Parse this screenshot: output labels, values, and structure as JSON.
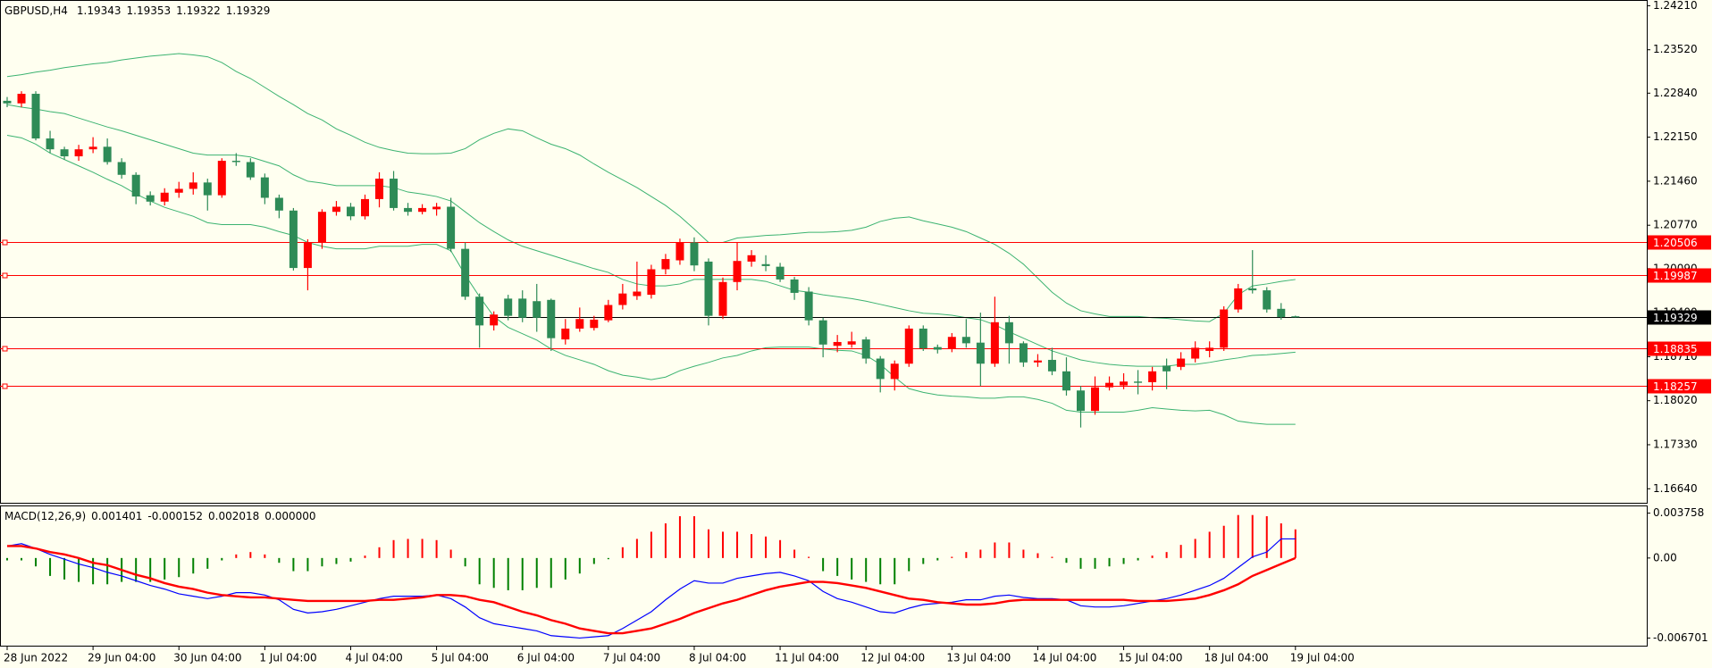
{
  "chart_data": [
    {
      "type": "candlestick",
      "title": "GBPUSD,H4",
      "categories": [
        "28 Jun 2022",
        null,
        null,
        null,
        null,
        null,
        "29 Jun 04:00",
        null,
        null,
        null,
        null,
        null,
        "30 Jun 04:00",
        null,
        null,
        null,
        null,
        null,
        "1 Jul 04:00",
        null,
        null,
        null,
        null,
        null,
        "4 Jul 04:00",
        null,
        null,
        null,
        null,
        null,
        "5 Jul 04:00",
        null,
        null,
        null,
        null,
        null,
        "6 Jul 04:00",
        null,
        null,
        null,
        null,
        null,
        "7 Jul 04:00",
        null,
        null,
        null,
        null,
        null,
        "8 Jul 04:00",
        null,
        null,
        null,
        null,
        null,
        "11 Jul 04:00",
        null,
        null,
        null,
        null,
        null,
        "12 Jul 04:00",
        null,
        null,
        null,
        null,
        null,
        "13 Jul 04:00",
        null,
        null,
        null,
        null,
        null,
        "14 Jul 04:00",
        null,
        null,
        null,
        null,
        null,
        "15 Jul 04:00",
        null,
        null,
        null,
        null,
        null,
        "18 Jul 04:00",
        null,
        null,
        null,
        null,
        null,
        "19 Jul 04:00"
      ],
      "open": [
        1.2272,
        1.2268,
        1.2283,
        1.2213,
        1.2196,
        1.2185,
        1.2196,
        1.22,
        1.2176,
        1.2156,
        1.2124,
        1.2114,
        1.2128,
        1.2134,
        1.2144,
        1.2124,
        1.2178,
        1.2176,
        1.2152,
        1.212,
        1.21,
        1.201,
        1.205,
        1.2098,
        1.2106,
        1.2091,
        1.2118,
        1.215,
        1.2104,
        1.2098,
        1.2102,
        1.2106,
        1.204,
        1.1965,
        1.192,
        1.1962,
        1.1962,
        1.1958,
        1.196,
        1.1898,
        1.1915,
        1.1916,
        1.1928,
        1.1952,
        1.1966,
        1.1968,
        1.2008,
        1.2022,
        1.205,
        1.202,
        1.1935,
        1.1988,
        1.202,
        1.2016,
        1.2012,
        1.1992,
        1.1973,
        1.1928,
        1.1888,
        1.189,
        1.1898,
        1.1868,
        1.1836,
        1.186,
        1.1915,
        1.1886,
        1.1884,
        1.1902,
        1.1893,
        1.186,
        1.1925,
        1.1892,
        1.1862,
        1.1866,
        1.1848,
        1.1818,
        1.1786,
        1.1823,
        1.1826,
        1.1832,
        1.1831,
        1.1857,
        1.1855,
        1.1868,
        1.188,
        1.1885,
        1.1945,
        1.1978,
        1.1975,
        1.1946,
        1.19343
      ],
      "high": [
        1.2278,
        1.2287,
        1.2287,
        1.2225,
        1.22,
        1.2203,
        1.2215,
        1.2213,
        1.2182,
        1.216,
        1.213,
        1.2135,
        1.2145,
        1.216,
        1.215,
        1.2182,
        1.219,
        1.2182,
        1.2158,
        1.2125,
        1.2104,
        1.2055,
        1.2102,
        1.2115,
        1.2112,
        1.2125,
        1.216,
        1.2162,
        1.2112,
        1.211,
        1.2112,
        1.212,
        1.205,
        1.197,
        1.1942,
        1.1968,
        1.1975,
        1.1985,
        1.1962,
        1.193,
        1.1948,
        1.1935,
        1.196,
        1.1985,
        1.202,
        1.2015,
        1.2032,
        1.2056,
        1.2058,
        1.2025,
        1.1995,
        1.205,
        1.2038,
        1.203,
        1.2018,
        1.1996,
        1.198,
        1.1932,
        1.1905,
        1.191,
        1.1902,
        1.1872,
        1.1865,
        1.192,
        1.192,
        1.189,
        1.1908,
        1.193,
        1.194,
        1.1965,
        1.1935,
        1.1895,
        1.1875,
        1.1885,
        1.187,
        1.1825,
        1.184,
        1.184,
        1.1845,
        1.185,
        1.1855,
        1.1868,
        1.1878,
        1.1895,
        1.1895,
        1.195,
        1.1985,
        1.2038,
        1.198,
        1.1955,
        1.19353
      ],
      "low": [
        1.2262,
        1.2262,
        1.221,
        1.219,
        1.218,
        1.2178,
        1.219,
        1.2172,
        1.215,
        1.211,
        1.2108,
        1.2108,
        1.212,
        1.2125,
        1.21,
        1.212,
        1.217,
        1.2148,
        1.211,
        1.2088,
        1.2006,
        1.1975,
        1.204,
        1.2092,
        1.2085,
        1.2086,
        1.2105,
        1.21,
        1.2092,
        1.2094,
        1.2092,
        1.2035,
        1.196,
        1.1885,
        1.1912,
        1.1928,
        1.1925,
        1.191,
        1.188,
        1.189,
        1.191,
        1.1912,
        1.1925,
        1.1945,
        1.196,
        1.1962,
        1.2,
        1.2015,
        1.2005,
        1.192,
        1.193,
        1.1975,
        1.2012,
        1.2005,
        1.1988,
        1.196,
        1.192,
        1.187,
        1.1878,
        1.1885,
        1.186,
        1.1815,
        1.1818,
        1.1855,
        1.188,
        1.1876,
        1.1878,
        1.1885,
        1.1825,
        1.1855,
        1.186,
        1.1855,
        1.1855,
        1.1842,
        1.181,
        1.176,
        1.178,
        1.1818,
        1.182,
        1.1812,
        1.1818,
        1.182,
        1.185,
        1.1862,
        1.187,
        1.188,
        1.194,
        1.197,
        1.194,
        1.1929,
        1.19322
      ],
      "close": [
        1.2268,
        1.2283,
        1.2213,
        1.2196,
        1.2185,
        1.2196,
        1.22,
        1.2176,
        1.2156,
        1.2122,
        1.2114,
        1.2128,
        1.2134,
        1.2144,
        1.2124,
        1.2178,
        1.2176,
        1.2152,
        1.212,
        1.21,
        1.201,
        1.205,
        1.2098,
        1.2106,
        1.2091,
        1.2118,
        1.215,
        1.2104,
        1.2098,
        1.2104,
        1.2106,
        1.204,
        1.1965,
        1.192,
        1.1937,
        1.1935,
        1.1932,
        1.1932,
        1.19,
        1.1915,
        1.193,
        1.1929,
        1.1952,
        1.197,
        1.1973,
        1.2008,
        1.2024,
        1.205,
        1.2014,
        1.1935,
        1.1988,
        1.2021,
        1.203,
        1.2013,
        1.1992,
        1.1971,
        1.1928,
        1.189,
        1.1894,
        1.1895,
        1.1868,
        1.1836,
        1.186,
        1.1915,
        1.1884,
        1.1882,
        1.1902,
        1.1892,
        1.186,
        1.1925,
        1.1892,
        1.1862,
        1.1865,
        1.1848,
        1.1818,
        1.1786,
        1.1823,
        1.183,
        1.1832,
        1.183,
        1.1848,
        1.1848,
        1.1868,
        1.1885,
        1.1885,
        1.1945,
        1.1978,
        1.1975,
        1.1945,
        1.1933,
        1.19329
      ],
      "up_color": "#ff0000",
      "down_color": "#2e8b57",
      "bands": {
        "color": "#3cb371",
        "upper": [
          1.231,
          1.2313,
          1.2317,
          1.232,
          1.2324,
          1.2327,
          1.233,
          1.2332,
          1.2336,
          1.2339,
          1.2342,
          1.2344,
          1.2346,
          1.2344,
          1.2341,
          1.2332,
          1.2318,
          1.2307,
          1.2293,
          1.2279,
          1.2266,
          1.2252,
          1.2242,
          1.2228,
          1.2218,
          1.2207,
          1.2199,
          1.2194,
          1.219,
          1.2189,
          1.2189,
          1.219,
          1.2197,
          1.2211,
          1.2221,
          1.2228,
          1.2225,
          1.2214,
          1.2204,
          1.2197,
          1.2187,
          1.2173,
          1.216,
          1.2148,
          1.2136,
          1.2122,
          1.2108,
          1.2091,
          1.2071,
          1.205,
          1.205,
          1.2057,
          1.2059,
          1.2061,
          1.2062,
          1.2064,
          1.2066,
          1.2066,
          1.2067,
          1.2069,
          1.2074,
          1.2083,
          1.2088,
          1.209,
          1.2084,
          1.2079,
          1.2074,
          1.2067,
          1.2057,
          1.2047,
          1.2033,
          1.2016,
          1.1994,
          1.1972,
          1.1955,
          1.1943,
          1.1938,
          1.1934,
          1.1934,
          1.1934,
          1.1932,
          1.1931,
          1.1929,
          1.1927,
          1.1926,
          1.1939,
          1.1968,
          1.1982,
          1.1985,
          1.1989,
          1.1992
        ],
        "middle": [
          1.2266,
          1.2262,
          1.2259,
          1.2255,
          1.2252,
          1.2245,
          1.2238,
          1.2231,
          1.2225,
          1.2218,
          1.2211,
          1.2204,
          1.2197,
          1.219,
          1.2187,
          1.2187,
          1.2187,
          1.2184,
          1.2177,
          1.217,
          1.2156,
          1.2146,
          1.2143,
          1.2139,
          1.2139,
          1.2139,
          1.2139,
          1.2136,
          1.2129,
          1.2126,
          1.2122,
          1.2115,
          1.2098,
          1.2081,
          1.2067,
          1.2054,
          1.2044,
          1.2037,
          1.203,
          1.2023,
          1.2016,
          1.2009,
          1.2003,
          1.1992,
          1.1985,
          1.1982,
          1.1982,
          1.1985,
          1.1992,
          1.1992,
          1.1992,
          1.1992,
          1.1992,
          1.1989,
          1.1982,
          1.1975,
          1.1972,
          1.1968,
          1.1965,
          1.1962,
          1.1958,
          1.1953,
          1.1948,
          1.1943,
          1.1939,
          1.1938,
          1.1936,
          1.1932,
          1.1929,
          1.1921,
          1.191,
          1.19,
          1.189,
          1.188,
          1.1873,
          1.1866,
          1.1862,
          1.1859,
          1.1857,
          1.1856,
          1.1856,
          1.1856,
          1.1859,
          1.1859,
          1.1862,
          1.1866,
          1.1869,
          1.1873,
          1.1874,
          1.1876,
          1.1878
        ],
        "lower": [
          1.2218,
          1.2214,
          1.2204,
          1.219,
          1.218,
          1.217,
          1.216,
          1.2149,
          1.2139,
          1.2126,
          1.2115,
          1.2105,
          1.2098,
          1.2091,
          1.2081,
          1.2078,
          1.2078,
          1.2078,
          1.2074,
          1.2067,
          1.2061,
          1.205,
          1.2044,
          1.204,
          1.204,
          1.204,
          1.2044,
          1.2044,
          1.2044,
          1.2047,
          1.2047,
          1.2037,
          1.1999,
          1.1965,
          1.1934,
          1.1917,
          1.1907,
          1.1897,
          1.1883,
          1.1873,
          1.1866,
          1.1859,
          1.1849,
          1.1842,
          1.1839,
          1.1835,
          1.1839,
          1.1849,
          1.1856,
          1.1862,
          1.1869,
          1.1873,
          1.188,
          1.1885,
          1.1886,
          1.1886,
          1.1886,
          1.1883,
          1.1881,
          1.188,
          1.1873,
          1.1859,
          1.1839,
          1.1821,
          1.1815,
          1.1811,
          1.1809,
          1.1808,
          1.1806,
          1.1806,
          1.1808,
          1.1808,
          1.1804,
          1.1798,
          1.1787,
          1.1784,
          1.1784,
          1.1784,
          1.1784,
          1.1787,
          1.1791,
          1.1789,
          1.1787,
          1.1786,
          1.1787,
          1.178,
          1.177,
          1.1767,
          1.1765,
          1.1765,
          1.1765
        ]
      },
      "levels": [
        1.20506,
        1.19987,
        1.18835,
        1.18257
      ],
      "level_color": "#ff0000",
      "ylim": [
        1.1642,
        1.243
      ],
      "yticks": [
        {
          "value": 1.2421,
          "label": "1.24210"
        },
        {
          "value": 1.2352,
          "label": "1.23520"
        },
        {
          "value": 1.2284,
          "label": "1.22840"
        },
        {
          "value": 1.2215,
          "label": "1.22150"
        },
        {
          "value": 1.2146,
          "label": "1.21460"
        },
        {
          "value": 1.2077,
          "label": "1.20770"
        },
        {
          "value": 1.2009,
          "label": "1.20090"
        },
        {
          "value": 1.194,
          "label": "1.19400"
        },
        {
          "value": 1.1871,
          "label": "1.18710"
        },
        {
          "value": 1.1802,
          "label": "1.18020"
        },
        {
          "value": 1.1733,
          "label": "1.17330"
        },
        {
          "value": 1.1664,
          "label": "1.16640"
        }
      ]
    },
    {
      "type": "macd",
      "title": "MACD(12,26,9)",
      "indicator_values": [
        0.001401,
        -0.000152,
        0.002018,
        {
          "value": 0,
          "label": "0.000000"
        }
      ],
      "histogram": [
        -0.0002,
        -0.0002,
        -0.0007,
        -0.0015,
        -0.0018,
        -0.002,
        -0.0022,
        -0.0022,
        -0.002,
        -0.002,
        -0.002,
        -0.0018,
        -0.0016,
        -0.0013,
        -0.0009,
        -0.0002,
        0.0003,
        0.0005,
        0.0003,
        -0.0004,
        -0.0011,
        -0.0011,
        -0.0007,
        -0.0005,
        -0.0003,
        0.0002,
        0.0009,
        0.0015,
        0.0016,
        0.0016,
        0.0015,
        0.0007,
        -0.0007,
        -0.0022,
        -0.0025,
        -0.0027,
        -0.0027,
        -0.0025,
        -0.0025,
        -0.0018,
        -0.0013,
        -0.0005,
        -0.0001,
        0.0009,
        0.0016,
        0.0022,
        0.0029,
        0.0035,
        0.0035,
        0.0024,
        0.0022,
        0.0022,
        0.002,
        0.0018,
        0.0015,
        0.0007,
        0.0001,
        -0.0011,
        -0.0015,
        -0.0018,
        -0.002,
        -0.0022,
        -0.0022,
        -0.0011,
        -0.0005,
        -0.0002,
        0.0001,
        0.0005,
        0.0007,
        0.0013,
        0.0013,
        0.0007,
        0.0004,
        0.0001,
        -0.0004,
        -0.0009,
        -0.0009,
        -0.0007,
        -0.0005,
        -0.0002,
        0.0002,
        0.0005,
        0.0011,
        0.0016,
        0.0022,
        0.0027,
        0.0036,
        0.0036,
        0.0035,
        0.0029,
        0.0024
      ],
      "main": [
        0.001,
        0.0012,
        0.0008,
        0.0003,
        -0.0001,
        -0.0005,
        -0.0008,
        -0.0012,
        -0.0015,
        -0.0019,
        -0.0023,
        -0.0026,
        -0.003,
        -0.0032,
        -0.0034,
        -0.0032,
        -0.0029,
        -0.0029,
        -0.0031,
        -0.0035,
        -0.0043,
        -0.0046,
        -0.0045,
        -0.0043,
        -0.004,
        -0.0037,
        -0.0034,
        -0.0032,
        -0.0032,
        -0.0032,
        -0.0031,
        -0.0034,
        -0.0041,
        -0.005,
        -0.0055,
        -0.0057,
        -0.0059,
        -0.0061,
        -0.0065,
        -0.0066,
        -0.0067,
        -0.0066,
        -0.0065,
        -0.0059,
        -0.0052,
        -0.0045,
        -0.0035,
        -0.0026,
        -0.0019,
        -0.0021,
        -0.0021,
        -0.0017,
        -0.0015,
        -0.0013,
        -0.0012,
        -0.0015,
        -0.0019,
        -0.0028,
        -0.0034,
        -0.0037,
        -0.0041,
        -0.0045,
        -0.0046,
        -0.0042,
        -0.0039,
        -0.0038,
        -0.0037,
        -0.0035,
        -0.0035,
        -0.0032,
        -0.0031,
        -0.0033,
        -0.0034,
        -0.0034,
        -0.0035,
        -0.004,
        -0.0041,
        -0.0041,
        -0.004,
        -0.0038,
        -0.0036,
        -0.0034,
        -0.0031,
        -0.0027,
        -0.0023,
        -0.0017,
        -0.0008,
        0.0001,
        0.0005,
        0.0016,
        0.0016
      ],
      "signal": [
        0.001,
        0.001,
        0.0008,
        0.0005,
        0.0003,
        0,
        -0.0004,
        -0.0006,
        -0.001,
        -0.0014,
        -0.0017,
        -0.0021,
        -0.0024,
        -0.0026,
        -0.0029,
        -0.0031,
        -0.0032,
        -0.0033,
        -0.0033,
        -0.0034,
        -0.0035,
        -0.0036,
        -0.0036,
        -0.0036,
        -0.0036,
        -0.0036,
        -0.0035,
        -0.0035,
        -0.0034,
        -0.0033,
        -0.0031,
        -0.0031,
        -0.0032,
        -0.0035,
        -0.0037,
        -0.0041,
        -0.0045,
        -0.0048,
        -0.0052,
        -0.0055,
        -0.0059,
        -0.0061,
        -0.0063,
        -0.0063,
        -0.0061,
        -0.0059,
        -0.0055,
        -0.0051,
        -0.0046,
        -0.0042,
        -0.0038,
        -0.0035,
        -0.0031,
        -0.0027,
        -0.0024,
        -0.0022,
        -0.002,
        -0.002,
        -0.0021,
        -0.0023,
        -0.0025,
        -0.0028,
        -0.0031,
        -0.0034,
        -0.0035,
        -0.0037,
        -0.0038,
        -0.0039,
        -0.0039,
        -0.0038,
        -0.0036,
        -0.0035,
        -0.0035,
        -0.0035,
        -0.0035,
        -0.0035,
        -0.0035,
        -0.0035,
        -0.0035,
        -0.0036,
        -0.0036,
        -0.0036,
        -0.0035,
        -0.0034,
        -0.0031,
        -0.0027,
        -0.0022,
        -0.0015,
        -0.001,
        -0.0005,
        0
      ],
      "hist_up_color": "#ff0000",
      "hist_down_color": "#008000",
      "main_color": "#0000ff",
      "signal_color": "#ff0000",
      "ylim": [
        -0.00734,
        0.0044
      ],
      "yticks": [
        0.003758,
        {
          "value": 0,
          "label": "0.00"
        },
        -0.006701
      ]
    }
  ]
}
